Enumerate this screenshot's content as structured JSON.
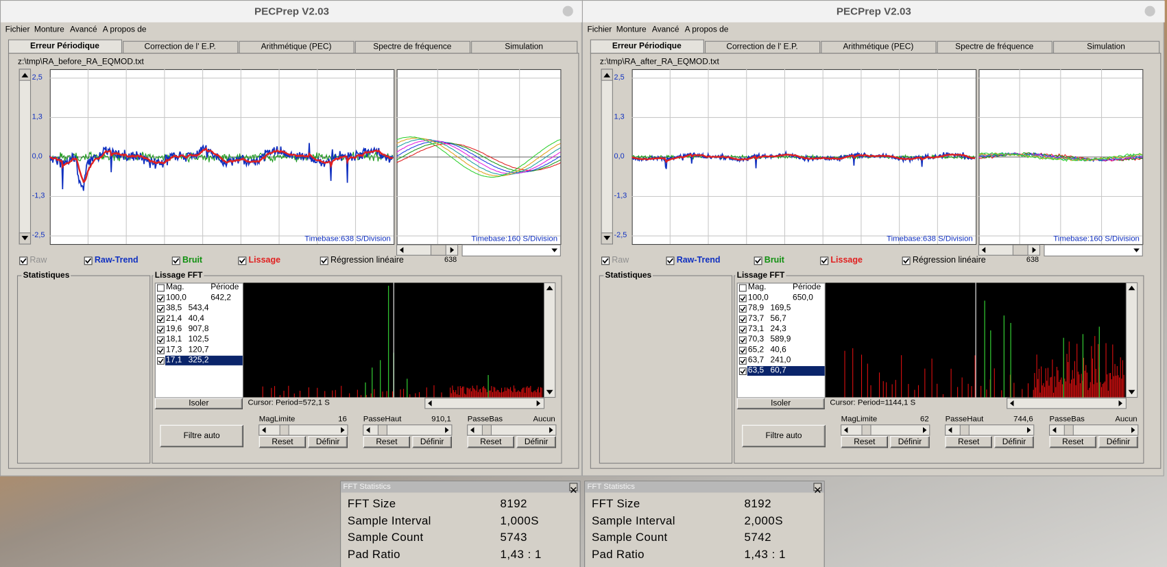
{
  "windows": [
    {
      "title": "PECPrep V2.03",
      "menu": [
        "Fichier",
        "Monture",
        "Avancé",
        "A propos de"
      ],
      "tabs": [
        "Erreur Périodique",
        "Correction de l' E.P.",
        "Arithmétique (PEC)",
        "Spectre de fréquence",
        "Simulation"
      ],
      "file": "z:\\tmp\\RA_before_RA_EQMOD.txt",
      "y_labels": [
        "2,5",
        "1,3",
        "0,0",
        "-1,3",
        "-2,5"
      ],
      "timebase_main": "Timebase:638 S/Division",
      "timebase_side": "Timebase:160 S/Division",
      "slider_value": "638",
      "checkboxes": [
        "Raw",
        "Raw-Trend",
        "Bruit",
        "Lissage",
        "Régression linéaire"
      ],
      "stats_title": "Statistiques",
      "fft_title": "Lissage FFT",
      "fft_header": [
        "Mag.",
        "Période"
      ],
      "fft_rows": [
        [
          "100,0",
          "642,2"
        ],
        [
          "38,5",
          "543,4"
        ],
        [
          "21,4",
          "40,4"
        ],
        [
          "19,6",
          "907,8"
        ],
        [
          "18,1",
          "102,5"
        ],
        [
          "17,3",
          "120,7"
        ],
        [
          "17,1",
          "325,2"
        ]
      ],
      "isolate": "Isoler",
      "cursor": "Cursor: Period=572,1 S",
      "auto_filter": "Filtre auto",
      "filters": [
        {
          "label": "MagLimite",
          "value": "16"
        },
        {
          "label": "PasseHaut",
          "value": "910,1"
        },
        {
          "label": "PasseBas",
          "value": "Aucun"
        }
      ],
      "reset": "Reset",
      "define": "Définir"
    },
    {
      "title": "PECPrep V2.03",
      "menu": [
        "Fichier",
        "Monture",
        "Avancé",
        "A propos de"
      ],
      "tabs": [
        "Erreur Périodique",
        "Correction de l' E.P.",
        "Arithmétique (PEC)",
        "Spectre de fréquence",
        "Simulation"
      ],
      "file": "z:\\tmp\\RA_after_RA_EQMOD.txt",
      "y_labels": [
        "2,5",
        "1,3",
        "0,0",
        "-1,3",
        "-2,5"
      ],
      "timebase_main": "Timebase:638 S/Division",
      "timebase_side": "Timebase:160 S/Division",
      "slider_value": "638",
      "checkboxes": [
        "Raw",
        "Raw-Trend",
        "Bruit",
        "Lissage",
        "Régression linéaire"
      ],
      "stats_title": "Statistiques",
      "fft_title": "Lissage FFT",
      "fft_header": [
        "Mag.",
        "Période"
      ],
      "fft_rows": [
        [
          "100,0",
          "650,0"
        ],
        [
          "78,9",
          "169,5"
        ],
        [
          "73,7",
          "56,7"
        ],
        [
          "73,1",
          "24,3"
        ],
        [
          "70,3",
          "589,9"
        ],
        [
          "65,2",
          "40,6"
        ],
        [
          "63,7",
          "241,0"
        ],
        [
          "63,5",
          "60,7"
        ]
      ],
      "isolate": "Isoler",
      "cursor": "Cursor: Period=1144,1 S",
      "auto_filter": "Filtre auto",
      "filters": [
        {
          "label": "MagLimite",
          "value": "62"
        },
        {
          "label": "PasseHaut",
          "value": "744,6"
        },
        {
          "label": "PasseBas",
          "value": "Aucun"
        }
      ],
      "reset": "Reset",
      "define": "Définir"
    }
  ],
  "dialogs": [
    {
      "title": "FFT Statistics",
      "rows": [
        [
          "FFT Size",
          "8192"
        ],
        [
          "Sample Interval",
          "1,000S"
        ],
        [
          "Sample Count",
          "5743"
        ],
        [
          "Pad Ratio",
          "1,43 : 1"
        ]
      ]
    },
    {
      "title": "FFT Statistics",
      "rows": [
        [
          "FFT Size",
          "8192"
        ],
        [
          "Sample Interval",
          "2,000S"
        ],
        [
          "Sample Count",
          "5742"
        ],
        [
          "Pad Ratio",
          "1,43 : 1"
        ]
      ]
    }
  ]
}
